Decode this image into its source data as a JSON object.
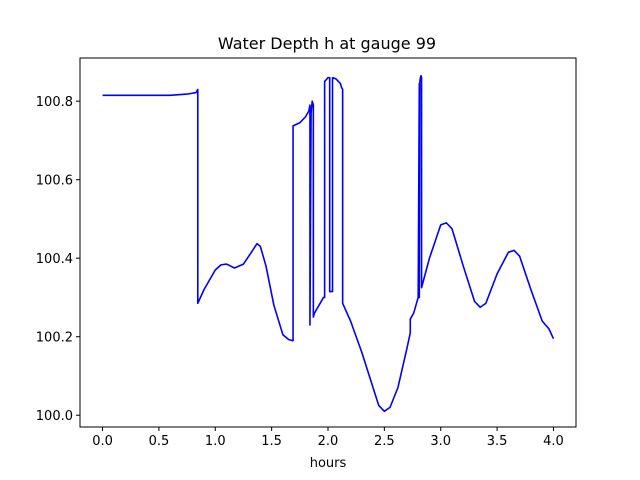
{
  "chart_data": {
    "type": "line",
    "title": "Water Depth h at gauge 99",
    "xlabel": "hours",
    "ylabel": "",
    "xlim": [
      -0.2,
      4.2
    ],
    "ylim": [
      99.97,
      100.91
    ],
    "x_ticks": [
      0.0,
      0.5,
      1.0,
      1.5,
      2.0,
      2.5,
      3.0,
      3.5,
      4.0
    ],
    "x_tick_labels": [
      "0.0",
      "0.5",
      "1.0",
      "1.5",
      "2.0",
      "2.5",
      "3.0",
      "3.5",
      "4.0"
    ],
    "y_ticks": [
      100.0,
      100.2,
      100.4,
      100.6,
      100.8
    ],
    "y_tick_labels": [
      "100.0",
      "100.2",
      "100.4",
      "100.6",
      "100.8"
    ],
    "grid": false,
    "series": [
      {
        "color": "#0000ff",
        "x": [
          0.0,
          0.3,
          0.6,
          0.75,
          0.83,
          0.845,
          0.845,
          0.9,
          1.0,
          1.05,
          1.1,
          1.17,
          1.25,
          1.32,
          1.37,
          1.4,
          1.45,
          1.52,
          1.6,
          1.65,
          1.685,
          1.69,
          1.69,
          1.75,
          1.8,
          1.83,
          1.84,
          1.84,
          1.85,
          1.86,
          1.87,
          1.87,
          1.88,
          1.92,
          1.96,
          1.97,
          1.97,
          2.0,
          2.015,
          2.015,
          2.04,
          2.04,
          2.07,
          2.11,
          2.12,
          2.13,
          2.13,
          2.2,
          2.3,
          2.4,
          2.45,
          2.5,
          2.55,
          2.62,
          2.7,
          2.73,
          2.73,
          2.76,
          2.8,
          2.81,
          2.81,
          2.815,
          2.82,
          2.825,
          2.83,
          2.83,
          2.9,
          3.0,
          3.05,
          3.1,
          3.2,
          3.3,
          3.35,
          3.4,
          3.5,
          3.6,
          3.65,
          3.7,
          3.8,
          3.9,
          3.96,
          4.0
        ],
        "y": [
          100.815,
          100.815,
          100.815,
          100.818,
          100.822,
          100.83,
          100.285,
          100.32,
          100.37,
          100.383,
          100.385,
          100.375,
          100.385,
          100.415,
          100.437,
          100.43,
          100.38,
          100.28,
          100.205,
          100.193,
          100.19,
          100.19,
          100.737,
          100.745,
          100.76,
          100.775,
          100.79,
          100.23,
          100.77,
          100.8,
          100.79,
          100.25,
          100.26,
          100.28,
          100.3,
          100.3,
          100.85,
          100.86,
          100.86,
          100.315,
          100.315,
          100.86,
          100.857,
          100.845,
          100.835,
          100.83,
          100.285,
          100.24,
          100.16,
          100.07,
          100.025,
          100.01,
          100.02,
          100.07,
          100.17,
          100.21,
          100.245,
          100.26,
          100.3,
          100.845,
          100.3,
          100.85,
          100.86,
          100.865,
          100.86,
          100.325,
          100.4,
          100.485,
          100.49,
          100.475,
          100.38,
          100.29,
          100.275,
          100.285,
          100.36,
          100.415,
          100.42,
          100.405,
          100.32,
          100.24,
          100.22,
          100.195
        ]
      }
    ]
  }
}
